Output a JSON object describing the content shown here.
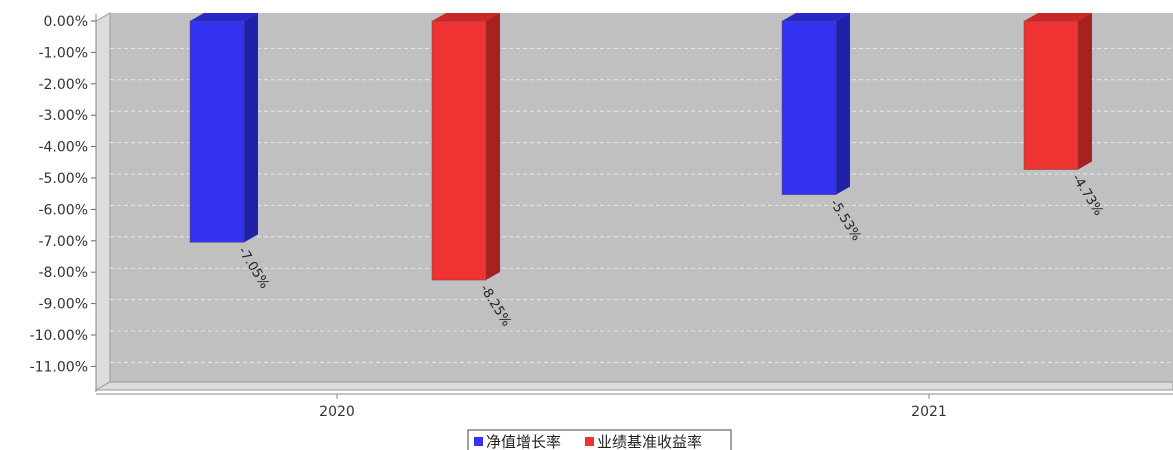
{
  "chart_data": {
    "type": "bar",
    "categories": [
      "2020",
      "2021"
    ],
    "series": [
      {
        "name": "净值增长率",
        "values": [
          -7.05,
          -5.53
        ],
        "labels": [
          "-7.05%",
          "-5.53%"
        ],
        "color": "#3232f0"
      },
      {
        "name": "业绩基准收益率",
        "values": [
          -8.25,
          -4.73
        ],
        "labels": [
          "-8.25%",
          "-4.73%"
        ],
        "color": "#f03232"
      }
    ],
    "yticks": [
      "0.00%",
      "-1.00%",
      "-2.00%",
      "-3.00%",
      "-4.00%",
      "-5.00%",
      "-6.00%",
      "-7.00%",
      "-8.00%",
      "-9.00%",
      "-10.00%",
      "-11.00%"
    ],
    "ylim": [
      -11.8,
      0
    ],
    "grid": true,
    "legend_position": "bottom-center",
    "plot_background": "#c0c0c0"
  }
}
